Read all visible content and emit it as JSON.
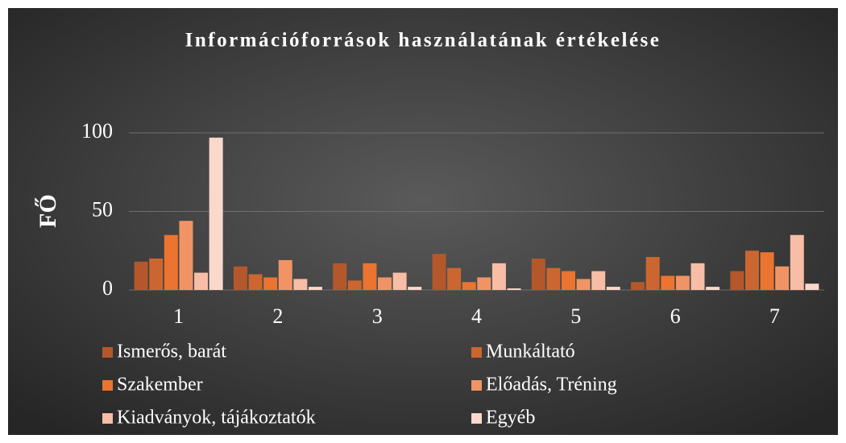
{
  "chart_data": {
    "type": "bar",
    "title": "Információforrások használatának értékelése",
    "y_label": "FŐ",
    "categories": [
      "1",
      "2",
      "3",
      "4",
      "5",
      "6",
      "7"
    ],
    "series": [
      {
        "name": "Ismerős, barát",
        "color": "#b4582c",
        "values": [
          18,
          15,
          17,
          23,
          20,
          5,
          12
        ]
      },
      {
        "name": "Munkáltató",
        "color": "#cc6630",
        "values": [
          20,
          10,
          6,
          14,
          14,
          21,
          25
        ]
      },
      {
        "name": "Szakember",
        "color": "#ea7430",
        "values": [
          35,
          8,
          17,
          5,
          12,
          9,
          24
        ]
      },
      {
        "name": "Előadás, Tréning",
        "color": "#f09466",
        "values": [
          44,
          19,
          8,
          8,
          7,
          9,
          15
        ]
      },
      {
        "name": "Kiadványok, tájákoztatók",
        "color": "#f7bda6",
        "values": [
          11,
          7,
          11,
          17,
          12,
          17,
          35
        ]
      },
      {
        "name": "Egyéb",
        "color": "#fad8cb",
        "values": [
          97,
          2,
          2,
          1,
          2,
          2,
          4
        ]
      }
    ],
    "ylim": [
      0,
      100
    ],
    "yticks": [
      0,
      50,
      100
    ],
    "grid": true,
    "legend": "bottom"
  }
}
